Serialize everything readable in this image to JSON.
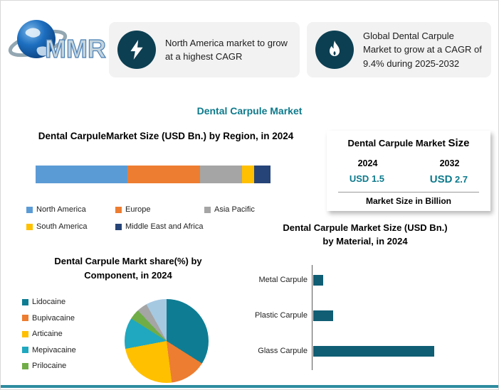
{
  "page": {
    "accent": "#0d7a8c",
    "icon_circle_color": "#0c3f52",
    "bottom_line_color": "#2e8ca0",
    "callout_bg": "#f2f2f2"
  },
  "logo": {
    "text": "MMR"
  },
  "callouts": [
    {
      "icon": "lightning-icon",
      "text": "North America market to grow at a highest CAGR"
    },
    {
      "icon": "flame-icon",
      "text": "Global Dental Carpule Market to grow at a CAGR of 9.4% during 2025-2032"
    }
  ],
  "main_title": "Dental Carpule Market",
  "market_size_card": {
    "title_main": "Dental Carpule Market",
    "title_em": "Size",
    "columns": [
      {
        "year": "2024",
        "usd": "USD",
        "value": "1.5"
      },
      {
        "year": "2032",
        "usd": "USD",
        "value": "2.7"
      }
    ],
    "footer": "Market Size in Billion"
  },
  "chart_data": [
    {
      "type": "bar",
      "subtype": "stacked-horizontal",
      "title": "Dental CarpuleMarket Size (USD Bn.) by Region, in 2024",
      "series": [
        {
          "name": "North America",
          "value": 39,
          "color": "#5b9bd5"
        },
        {
          "name": "Europe",
          "value": 31,
          "color": "#ed7d31"
        },
        {
          "name": "Asia Pacific",
          "value": 18,
          "color": "#a5a5a5"
        },
        {
          "name": "South America",
          "value": 5,
          "color": "#ffc000"
        },
        {
          "name": "Middle East and Africa",
          "value": 7,
          "color": "#264478"
        }
      ],
      "legend_position": "bottom"
    },
    {
      "type": "pie",
      "title": "Dental Carpule Markt share(%) by Component, in 2024",
      "slices": [
        {
          "label": "Lidocaine",
          "value": 34,
          "color": "#0e7d93"
        },
        {
          "label": "Bupivacaine",
          "value": 14,
          "color": "#ed7d31"
        },
        {
          "label": "Articaine",
          "value": 24,
          "color": "#ffc000"
        },
        {
          "label": "Mepivacaine",
          "value": 12,
          "color": "#1fa8bf"
        },
        {
          "label": "Prilocaine",
          "value": 4,
          "color": "#70ad47"
        },
        {
          "label": "",
          "value": 4,
          "color": "#a5a5a5"
        },
        {
          "label": "",
          "value": 8,
          "color": "#a6c9e2"
        }
      ],
      "legend_position": "left"
    },
    {
      "type": "bar",
      "subtype": "horizontal",
      "title": "Dental Carpule Market Size (USD Bn.) by Material, in 2024",
      "categories": [
        "Metal Carpule",
        "Plastic Carpule",
        "Glass Carpule"
      ],
      "values": [
        0.1,
        0.2,
        1.2
      ],
      "color": "#0f5e74",
      "ylabel": "",
      "xlabel": ""
    }
  ]
}
